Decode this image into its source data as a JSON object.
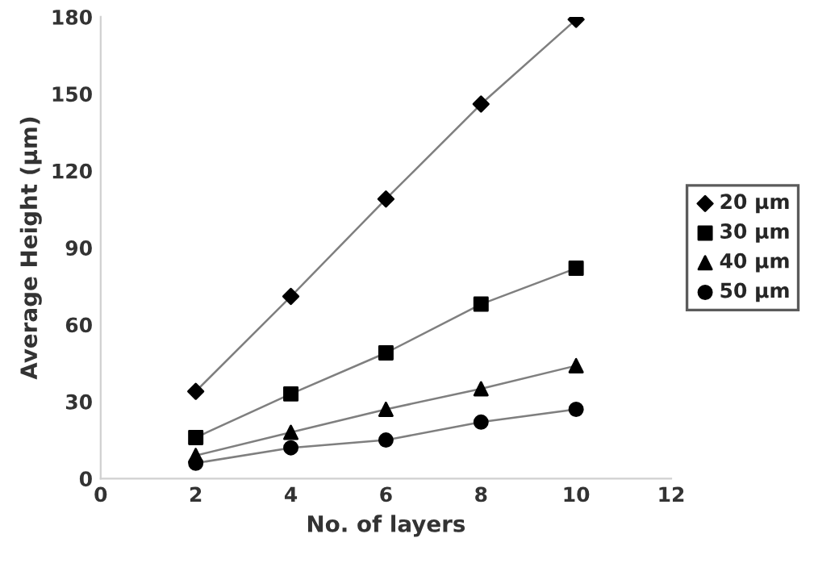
{
  "chart_data": {
    "type": "line",
    "xlabel": "No. of layers",
    "ylabel": "Average Height (µm)",
    "x": [
      2,
      4,
      6,
      8,
      10
    ],
    "series": [
      {
        "name": "20 µm",
        "color": "#000000",
        "marker": "diamond",
        "values": [
          34,
          71,
          109,
          146,
          179
        ]
      },
      {
        "name": "30 µm",
        "color": "#000000",
        "marker": "square",
        "values": [
          16,
          33,
          49,
          68,
          82
        ]
      },
      {
        "name": "40 µm",
        "color": "#000000",
        "marker": "triangle",
        "values": [
          9,
          18,
          27,
          35,
          44
        ]
      },
      {
        "name": "50 µm",
        "color": "#000000",
        "marker": "circle",
        "values": [
          6,
          12,
          15,
          22,
          27
        ]
      }
    ],
    "xlim": [
      0,
      12
    ],
    "xticks": [
      0,
      2,
      4,
      6,
      8,
      10,
      12
    ],
    "ylim": [
      0,
      180
    ],
    "yticks": [
      0,
      30,
      60,
      90,
      120,
      150,
      180
    ],
    "grid": false,
    "legend": "right"
  }
}
